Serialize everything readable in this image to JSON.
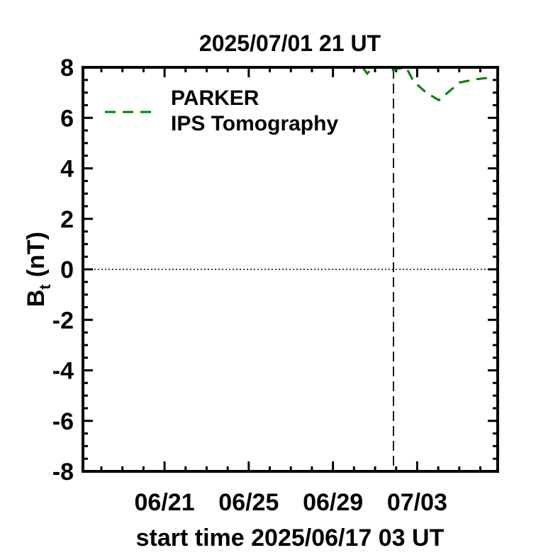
{
  "chart_data": {
    "type": "line",
    "title": "2025/07/01 21 UT",
    "xlabel": "start time 2025/06/17 03 UT",
    "ylabel_main": "B",
    "ylabel_sub": "t",
    "ylabel_unit": "(nT)",
    "x_unit": "days since 2025/06/17 03 UT",
    "xlim": [
      0,
      19.7
    ],
    "ylim": [
      -8,
      8
    ],
    "x_ticks": [
      {
        "label": "06/21",
        "x": 3.875
      },
      {
        "label": "06/25",
        "x": 7.875
      },
      {
        "label": "06/29",
        "x": 11.875
      },
      {
        "label": "07/03",
        "x": 15.875
      }
    ],
    "y_ticks": [
      {
        "label": "8",
        "y": 8
      },
      {
        "label": "6",
        "y": 6
      },
      {
        "label": "4",
        "y": 4
      },
      {
        "label": "2",
        "y": 2
      },
      {
        "label": "0",
        "y": 0
      },
      {
        "label": "-2",
        "y": -2
      },
      {
        "label": "-4",
        "y": -4
      },
      {
        "label": "-6",
        "y": -6
      },
      {
        "label": "-8",
        "y": -8
      }
    ],
    "reference_lines": {
      "vertical_dashed_x": 14.75,
      "horizontal_dotted_y": 0
    },
    "legend": {
      "placement": "top-left",
      "title": "PARKER",
      "entry": "IPS Tomography"
    },
    "series": [
      {
        "name": "IPS Tomography",
        "color": "#008000",
        "style": "dashed",
        "points": [
          [
            13.3,
            7.99
          ],
          [
            13.5,
            7.75
          ],
          [
            13.75,
            8.0
          ],
          [
            14.4,
            8.0
          ],
          [
            14.7,
            7.9
          ],
          [
            15.0,
            7.95
          ],
          [
            15.35,
            8.0
          ],
          [
            15.7,
            7.45
          ],
          [
            16.3,
            7.0
          ],
          [
            16.9,
            6.7
          ],
          [
            17.4,
            7.05
          ],
          [
            17.9,
            7.4
          ],
          [
            18.6,
            7.52
          ],
          [
            19.4,
            7.6
          ]
        ]
      }
    ]
  }
}
